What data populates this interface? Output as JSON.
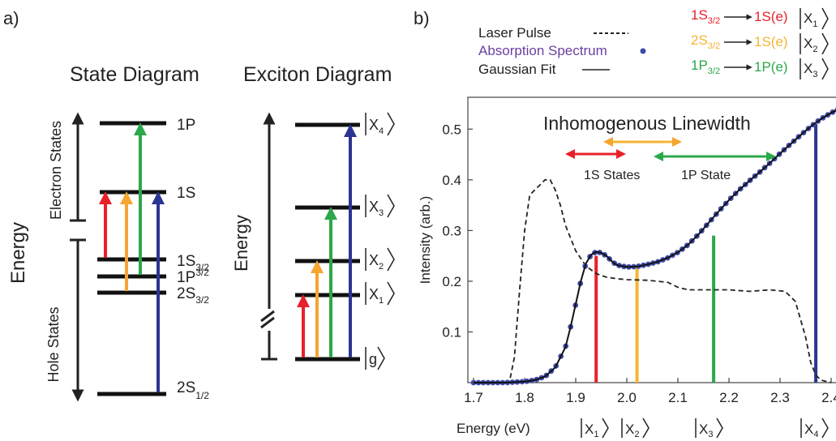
{
  "panel_a": {
    "label": "a)",
    "state_diagram": {
      "title": "State Diagram",
      "axis_label": "Energy",
      "electron_states_label": "Electron States",
      "hole_states_label": "Hole States",
      "levels": {
        "e1P": "1P",
        "e1S": "1S",
        "h1S": {
          "main": "1S",
          "sub": "3/2"
        },
        "h1P": {
          "main": "1P",
          "sub": "3/2"
        },
        "h2S": {
          "main": "2S",
          "sub": "3/2"
        },
        "h2S12": {
          "main": "2S",
          "sub": "1/2"
        }
      }
    },
    "exciton_diagram": {
      "title": "Exciton Diagram",
      "axis_label": "Energy",
      "levels": {
        "x4": "X",
        "x4s": "4",
        "x3": "X",
        "x3s": "3",
        "x2": "X",
        "x2s": "2",
        "x1": "X",
        "x1s": "1",
        "g": "g"
      }
    }
  },
  "panel_b": {
    "label": "b)",
    "legend": {
      "laser": "Laser Pulse",
      "absorption": "Absorption Spectrum",
      "fit": "Gaussian Fit"
    },
    "transitions": [
      {
        "from": "1S",
        "sub": "3/2",
        "to": "1S(e)",
        "state": "X",
        "state_sub": "1",
        "color": "#e8202a"
      },
      {
        "from": "2S",
        "sub": "3/2",
        "to": "1S(e)",
        "state": "X",
        "state_sub": "2",
        "color": "#f5b432"
      },
      {
        "from": "1P",
        "sub": "3/2",
        "to": "1P(e)",
        "state": "X",
        "state_sub": "3",
        "color": "#2ba84a"
      }
    ],
    "annotations": {
      "linewidth": "Inhomogenous Linewidth",
      "s_states": "1S States",
      "p_state": "1P State"
    },
    "bottom_labels": {
      "x1": "X",
      "x1s": "1",
      "x2": "X",
      "x2s": "2",
      "x3": "X",
      "x3s": "3",
      "x4": "X",
      "x4s": "4"
    }
  },
  "colors": {
    "red": "#e8202a",
    "orange": "#f5a531",
    "green": "#2ba84a",
    "blue": "#2a3593",
    "purple": "#6a3fa0",
    "dot": "#3f4aa8"
  },
  "chart_data": {
    "type": "line",
    "xlabel": "Energy (eV)",
    "ylabel": "Intensity (arb.)",
    "xlim": [
      1.7,
      2.45
    ],
    "ylim": [
      0,
      0.55
    ],
    "xticks": [
      1.7,
      1.8,
      1.9,
      2.0,
      2.1,
      2.2,
      2.3,
      2.4
    ],
    "xtick_labels": [
      "1.7",
      "1.8",
      "1.9",
      "2.0",
      "2.1",
      "2.2",
      "2.3",
      "2.4"
    ],
    "yticks": [
      0.1,
      0.2,
      0.3,
      0.4,
      0.5
    ],
    "ytick_labels": [
      "0.1",
      "0.2",
      "0.3",
      "0.4",
      "0.5"
    ],
    "series": [
      {
        "name": "Laser Pulse",
        "style": "dashed",
        "x": [
          1.7,
          1.77,
          1.78,
          1.79,
          1.8,
          1.81,
          1.82,
          1.83,
          1.84,
          1.85,
          1.86,
          1.87,
          1.88,
          1.9,
          1.92,
          1.94,
          1.96,
          1.98,
          2.0,
          2.04,
          2.08,
          2.1,
          2.12,
          2.16,
          2.2,
          2.24,
          2.28,
          2.31,
          2.33,
          2.35,
          2.36,
          2.37,
          2.38,
          2.4
        ],
        "y": [
          0,
          0,
          0.05,
          0.18,
          0.3,
          0.37,
          0.38,
          0.39,
          0.4,
          0.4,
          0.38,
          0.35,
          0.31,
          0.26,
          0.23,
          0.215,
          0.208,
          0.205,
          0.203,
          0.202,
          0.198,
          0.188,
          0.183,
          0.183,
          0.183,
          0.18,
          0.183,
          0.18,
          0.16,
          0.09,
          0.04,
          0.015,
          0.005,
          0.0
        ]
      },
      {
        "name": "Absorption Spectrum",
        "style": "dots",
        "x": [
          1.7,
          1.72,
          1.74,
          1.76,
          1.78,
          1.8,
          1.82,
          1.84,
          1.86,
          1.88,
          1.89,
          1.9,
          1.91,
          1.92,
          1.93,
          1.94,
          1.95,
          1.96,
          1.97,
          1.98,
          2.0,
          2.02,
          2.04,
          2.06,
          2.08,
          2.1,
          2.12,
          2.14,
          2.16,
          2.18,
          2.2,
          2.22,
          2.24,
          2.26,
          2.28,
          2.3,
          2.32,
          2.34,
          2.36,
          2.38,
          2.4,
          2.42,
          2.44
        ],
        "y": [
          0,
          0,
          0,
          0,
          0.001,
          0.002,
          0.005,
          0.012,
          0.03,
          0.07,
          0.11,
          0.155,
          0.2,
          0.235,
          0.252,
          0.258,
          0.256,
          0.25,
          0.24,
          0.232,
          0.228,
          0.229,
          0.233,
          0.238,
          0.246,
          0.257,
          0.272,
          0.292,
          0.315,
          0.338,
          0.36,
          0.38,
          0.398,
          0.415,
          0.433,
          0.452,
          0.47,
          0.488,
          0.505,
          0.52,
          0.532,
          0.542,
          0.548
        ]
      },
      {
        "name": "Gaussian Fit",
        "style": "solid",
        "x": [
          1.7,
          1.72,
          1.74,
          1.76,
          1.78,
          1.8,
          1.82,
          1.84,
          1.86,
          1.88,
          1.89,
          1.9,
          1.91,
          1.92,
          1.93,
          1.94,
          1.95,
          1.96,
          1.97,
          1.98,
          2.0,
          2.02,
          2.04,
          2.06,
          2.08,
          2.1,
          2.12,
          2.14,
          2.16,
          2.18,
          2.2,
          2.22,
          2.24,
          2.26,
          2.28,
          2.3,
          2.32,
          2.34,
          2.36,
          2.38,
          2.4,
          2.42,
          2.44
        ],
        "y": [
          0,
          0,
          0,
          0,
          0.001,
          0.002,
          0.005,
          0.012,
          0.03,
          0.07,
          0.11,
          0.155,
          0.2,
          0.235,
          0.252,
          0.258,
          0.256,
          0.25,
          0.24,
          0.232,
          0.228,
          0.229,
          0.233,
          0.238,
          0.246,
          0.257,
          0.272,
          0.292,
          0.315,
          0.338,
          0.36,
          0.38,
          0.398,
          0.415,
          0.433,
          0.452,
          0.47,
          0.488,
          0.505,
          0.52,
          0.532,
          0.542,
          0.548
        ]
      }
    ],
    "vlines": [
      {
        "x": 1.94,
        "y": 0.25,
        "color": "#e8202a"
      },
      {
        "x": 2.02,
        "y": 0.228,
        "color": "#f5b432"
      },
      {
        "x": 2.17,
        "y": 0.29,
        "color": "#2ba84a"
      },
      {
        "x": 2.37,
        "y": 0.51,
        "color": "#2a3593"
      }
    ]
  }
}
